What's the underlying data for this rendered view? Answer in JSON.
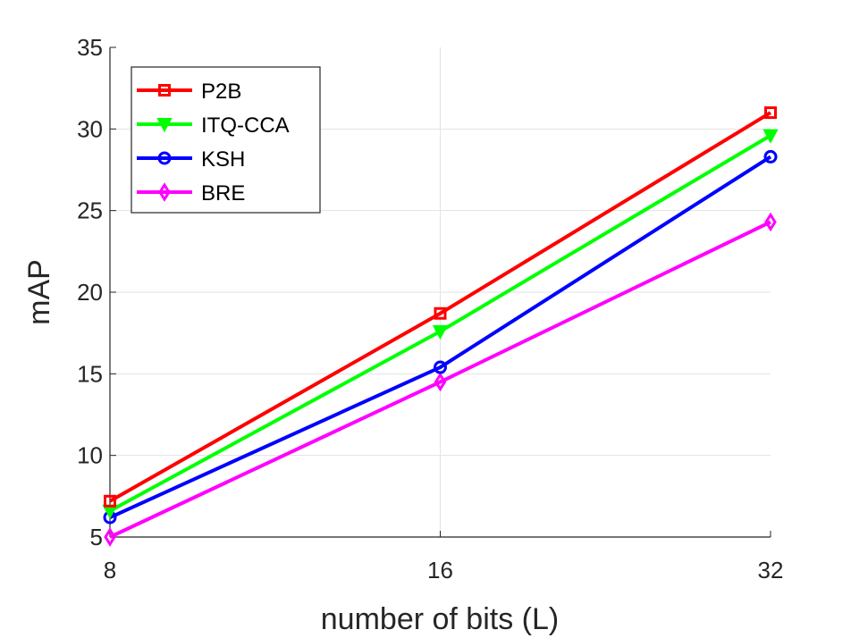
{
  "chart_data": {
    "type": "line",
    "title": "",
    "xlabel": "number of bits (L)",
    "ylabel": "mAP",
    "categories": [
      "8",
      "16",
      "32"
    ],
    "ylim": [
      5,
      35
    ],
    "yticks": [
      "5",
      "10",
      "15",
      "20",
      "25",
      "30",
      "35"
    ],
    "grid": true,
    "legend_position": "top-left",
    "series": [
      {
        "name": "P2B",
        "values": [
          7.2,
          18.7,
          31.0
        ],
        "color": "#ff0000",
        "marker": "square"
      },
      {
        "name": "ITQ-CCA",
        "values": [
          6.6,
          17.6,
          29.6
        ],
        "color": "#00ff00",
        "marker": "triangle-down"
      },
      {
        "name": "KSH",
        "values": [
          6.2,
          15.4,
          28.3
        ],
        "color": "#0000ff",
        "marker": "circle"
      },
      {
        "name": "BRE",
        "values": [
          5.0,
          14.5,
          24.3
        ],
        "color": "#ff00ff",
        "marker": "diamond"
      }
    ]
  }
}
